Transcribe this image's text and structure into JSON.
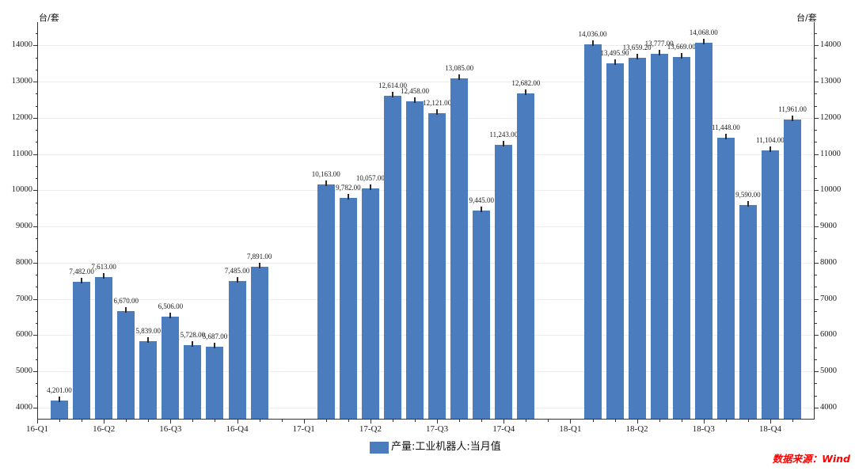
{
  "chart_data": {
    "type": "bar",
    "title": "",
    "y_axis": {
      "unit_left": "台/套",
      "unit_right": "台/套",
      "tick_values": [
        4000,
        5000,
        6000,
        7000,
        8000,
        9000,
        10000,
        11000,
        12000,
        13000,
        14000
      ],
      "range_shown": [
        4000,
        14000
      ],
      "grid": "horizontal-light"
    },
    "x_axis": {
      "tick_labels": [
        "16-Q1",
        "16-Q2",
        "16-Q3",
        "16-Q4",
        "17-Q1",
        "17-Q2",
        "17-Q3",
        "17-Q4",
        "18-Q1",
        "18-Q2",
        "18-Q3",
        "18-Q4"
      ]
    },
    "legend": {
      "label": "产量:工业机器人:当月值",
      "position": "bottom-center"
    },
    "bar_color": "#4b7cbd",
    "series": [
      {
        "name": "产量:工业机器人:当月值",
        "groups": [
          {
            "period": "2016",
            "values": [
              4201,
              7482,
              7613,
              6670,
              5839,
              6506,
              5728,
              5687,
              7485,
              7891
            ]
          },
          {
            "period": "2017",
            "values": [
              10163,
              9782,
              10057,
              12614,
              12458,
              12121,
              13085,
              9445,
              11243,
              12682
            ]
          },
          {
            "period": "2018",
            "values": [
              14036,
              13495.9,
              13659.2,
              13777,
              13669,
              14068,
              11448,
              9590,
              11104,
              11961
            ]
          }
        ]
      }
    ]
  },
  "footer": {
    "source_note": "数据来源：Wind",
    "source_color": "#ff0000"
  }
}
